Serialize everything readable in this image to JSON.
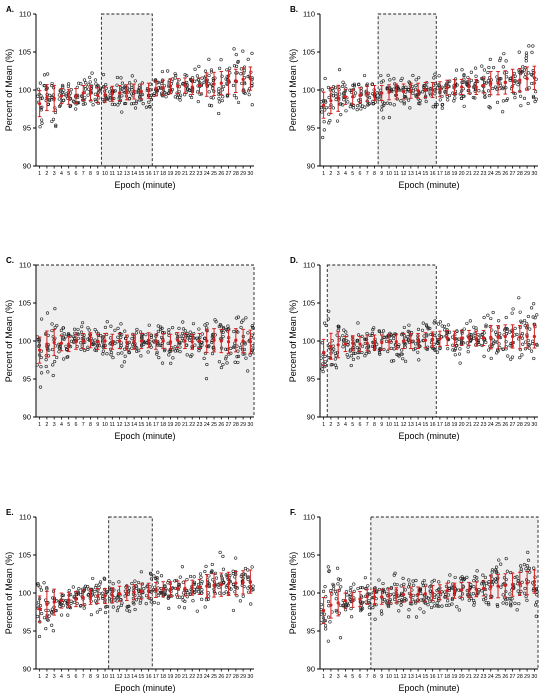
{
  "figure": {
    "panel_letters": [
      "A.",
      "B.",
      "C.",
      "D.",
      "E.",
      "F."
    ],
    "ylabel": "Percent of Mean (%)",
    "xlabel": "Epoch (minute)"
  },
  "colors": {
    "mean_marker": "#d42020",
    "points": "#222222",
    "shade": "#efefef",
    "box_dash": "#222222"
  },
  "chart_data": [
    {
      "panel": "A.",
      "type": "scatter",
      "x": [
        "1",
        "2",
        "3",
        "4",
        "5",
        "6",
        "7",
        "8",
        "9",
        "10",
        "11",
        "12",
        "13",
        "14",
        "15",
        "16",
        "17",
        "18",
        "19",
        "20",
        "21",
        "22",
        "23",
        "24",
        "25",
        "26",
        "27",
        "28",
        "29",
        "30"
      ],
      "series": [
        {
          "values": [
            98.2,
            99.0,
            98.9,
            99.2,
            99.1,
            99.2,
            99.6,
            99.6,
            99.3,
            99.4,
            99.5,
            99.6,
            99.7,
            99.8,
            99.8,
            99.9,
            100.2,
            100.3,
            100.5,
            100.5,
            100.6,
            100.4,
            100.6,
            100.7,
            100.8,
            100.9,
            101.0,
            101.2,
            101.4,
            101.5
          ]
        }
      ],
      "highlight_epochs": [
        9.5,
        16.5
      ],
      "xlabel": "Epoch (minute)",
      "ylabel": "Percent of Mean (%)",
      "ylim": [
        90,
        110
      ],
      "yticks": [
        90,
        95,
        100,
        105,
        110
      ]
    },
    {
      "panel": "B.",
      "type": "scatter",
      "x": [
        "1",
        "2",
        "3",
        "4",
        "5",
        "6",
        "7",
        "8",
        "9",
        "10",
        "11",
        "12",
        "13",
        "14",
        "15",
        "16",
        "17",
        "18",
        "19",
        "20",
        "21",
        "22",
        "23",
        "24",
        "25",
        "26",
        "27",
        "28",
        "29",
        "30"
      ],
      "series": [
        {
          "values": [
            98.0,
            98.6,
            98.9,
            99.1,
            99.1,
            99.3,
            99.5,
            99.6,
            99.6,
            99.7,
            99.8,
            99.8,
            99.9,
            99.9,
            100.0,
            100.0,
            100.1,
            100.3,
            100.4,
            100.4,
            100.5,
            100.4,
            100.6,
            100.9,
            100.9,
            101.0,
            101.2,
            101.3,
            101.5,
            101.6
          ]
        }
      ],
      "highlight_epochs": [
        8.5,
        16.5
      ],
      "xlabel": "Epoch (minute)",
      "ylabel": "Percent of Mean (%)",
      "ylim": [
        90,
        110
      ],
      "yticks": [
        90,
        95,
        100,
        105,
        110
      ]
    },
    {
      "panel": "C.",
      "type": "scatter",
      "x": [
        "1",
        "2",
        "3",
        "4",
        "5",
        "6",
        "7",
        "8",
        "9",
        "10",
        "11",
        "12",
        "13",
        "14",
        "15",
        "16",
        "17",
        "18",
        "19",
        "20",
        "21",
        "22",
        "23",
        "24",
        "25",
        "26",
        "27",
        "28",
        "29",
        "30"
      ],
      "series": [
        {
          "values": [
            98.8,
            99.6,
            99.8,
            99.7,
            99.6,
            99.9,
            100.0,
            100.1,
            99.9,
            100.0,
            99.9,
            100.0,
            99.8,
            99.9,
            100.0,
            100.1,
            99.9,
            100.0,
            99.9,
            100.1,
            100.0,
            99.9,
            100.0,
            100.0,
            100.1,
            100.0,
            99.9,
            100.1,
            100.0,
            99.9
          ]
        }
      ],
      "highlight_epochs": [
        0.5,
        30.5
      ],
      "xlabel": "Epoch (minute)",
      "ylabel": "Percent of Mean (%)",
      "ylim": [
        90,
        110
      ],
      "yticks": [
        90,
        95,
        100,
        105,
        110
      ]
    },
    {
      "panel": "D.",
      "type": "scatter",
      "x": [
        "1",
        "2",
        "3",
        "4",
        "5",
        "6",
        "7",
        "8",
        "9",
        "10",
        "11",
        "12",
        "13",
        "14",
        "15",
        "16",
        "17",
        "18",
        "19",
        "20",
        "21",
        "22",
        "23",
        "24",
        "25",
        "26",
        "27",
        "28",
        "29",
        "30"
      ],
      "series": [
        {
          "values": [
            98.5,
            99.3,
            99.5,
            99.6,
            99.7,
            99.6,
            99.7,
            99.8,
            99.8,
            99.9,
            99.9,
            100.0,
            100.0,
            100.0,
            100.1,
            100.2,
            100.3,
            100.4,
            100.3,
            100.4,
            100.4,
            100.3,
            100.4,
            100.5,
            100.5,
            100.6,
            100.6,
            100.5,
            100.6,
            100.6
          ]
        }
      ],
      "highlight_epochs": [
        1.5,
        16.5
      ],
      "xlabel": "Epoch (minute)",
      "ylabel": "Percent of Mean (%)",
      "ylim": [
        90,
        110
      ],
      "yticks": [
        90,
        95,
        100,
        105,
        110
      ]
    },
    {
      "panel": "E.",
      "type": "scatter",
      "x": [
        "1",
        "2",
        "3",
        "4",
        "5",
        "6",
        "7",
        "8",
        "9",
        "10",
        "11",
        "12",
        "13",
        "14",
        "15",
        "16",
        "17",
        "18",
        "19",
        "20",
        "21",
        "22",
        "23",
        "24",
        "25",
        "26",
        "27",
        "28",
        "29",
        "30"
      ],
      "series": [
        {
          "values": [
            97.9,
            98.5,
            98.8,
            99.0,
            99.1,
            99.2,
            99.4,
            99.5,
            99.6,
            99.6,
            99.7,
            99.9,
            100.0,
            100.1,
            100.2,
            100.3,
            100.4,
            100.5,
            100.5,
            100.6,
            100.6,
            100.7,
            100.8,
            100.9,
            101.0,
            101.1,
            101.2,
            101.3,
            101.4,
            101.5
          ]
        }
      ],
      "highlight_epochs": [
        10.5,
        16.5
      ],
      "xlabel": "Epoch (minute)",
      "ylabel": "Percent of Mean (%)",
      "ylim": [
        90,
        110
      ],
      "yticks": [
        90,
        95,
        100,
        105,
        110
      ]
    },
    {
      "panel": "F.",
      "type": "scatter",
      "x": [
        "1",
        "2",
        "3",
        "4",
        "5",
        "6",
        "7",
        "8",
        "9",
        "10",
        "11",
        "12",
        "13",
        "14",
        "15",
        "16",
        "17",
        "18",
        "19",
        "20",
        "21",
        "22",
        "23",
        "24",
        "25",
        "26",
        "27",
        "28",
        "29",
        "30"
      ],
      "series": [
        {
          "values": [
            97.7,
            98.4,
            98.7,
            99.0,
            99.1,
            99.2,
            99.5,
            99.5,
            99.5,
            99.6,
            99.7,
            99.8,
            99.8,
            99.8,
            99.9,
            100.0,
            100.1,
            100.3,
            100.3,
            100.4,
            100.4,
            100.5,
            100.6,
            100.8,
            100.9,
            101.0,
            101.1,
            101.2,
            101.3,
            101.5
          ]
        }
      ],
      "highlight_epochs": [
        7.5,
        30.5
      ],
      "xlabel": "Epoch (minute)",
      "ylabel": "Percent of Mean (%)",
      "ylim": [
        90,
        110
      ],
      "yticks": [
        90,
        95,
        100,
        105,
        110
      ]
    }
  ]
}
